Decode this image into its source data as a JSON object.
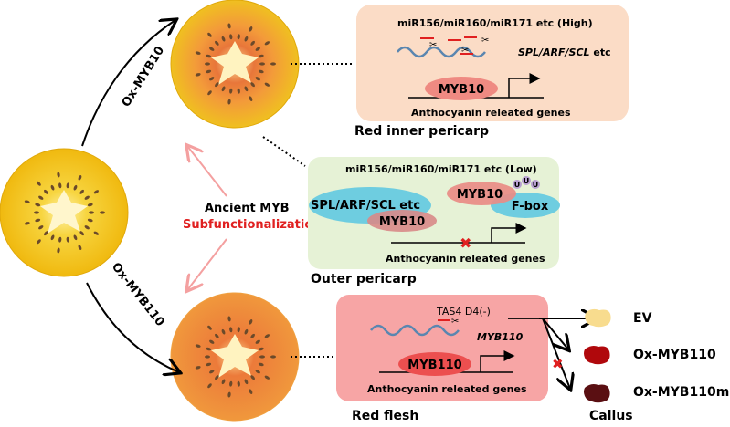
{
  "colors": {
    "fruit_yellow": "#f2c21a",
    "fruit_orange": "#ec8a3a",
    "box_high": "#fbdcc6",
    "box_low": "#e6f2d6",
    "box_flesh": "#f7a5a5",
    "myb_ellipse": "#e98c86",
    "myb110_ellipse": "#ec4f4f",
    "spl_ellipse": "#6ecde0",
    "ub": "#b79fd0",
    "mirna": "#e02020",
    "mrna": "#5a86b0",
    "accent_red": "#e02020",
    "ev_callus": "#f8dc8e",
    "ox_callus": "#b0080c",
    "oxm_callus": "#5a0f12"
  },
  "labels": {
    "ox_myb10": "Ox-MYB10",
    "ox_myb110": "Ox-MYB110",
    "ancient_myb": "Ancient MYB",
    "subfunctionalization": "Subfunctionalization",
    "red_inner_pericarp": "Red inner pericarp",
    "outer_pericarp": "Outer pericarp",
    "red_flesh": "Red flesh",
    "callus": "Callus"
  },
  "box_high": {
    "title": "miR156/miR160/miR171 etc (High)",
    "target_italic": "SPL/ARF/SCL",
    "target_suffix": " etc",
    "tf": "MYB10",
    "genes": "Anthocyanin releated genes"
  },
  "box_low": {
    "title": "miR156/miR160/miR171 etc (Low)",
    "spl": "SPL/ARF/SCL etc",
    "tf1": "MYB10",
    "tf2": "MYB10",
    "fbox": "F-box",
    "ub": "U",
    "genes": "Anthocyanin releated genes"
  },
  "box_flesh": {
    "title": "TAS4 D4(-)",
    "target": "MYB110",
    "tf": "MYB110",
    "genes": "Anthocyanin releated genes"
  },
  "callus_items": [
    {
      "label": "EV"
    },
    {
      "label": "Ox-MYB110"
    },
    {
      "label": "Ox-MYB110m"
    }
  ]
}
